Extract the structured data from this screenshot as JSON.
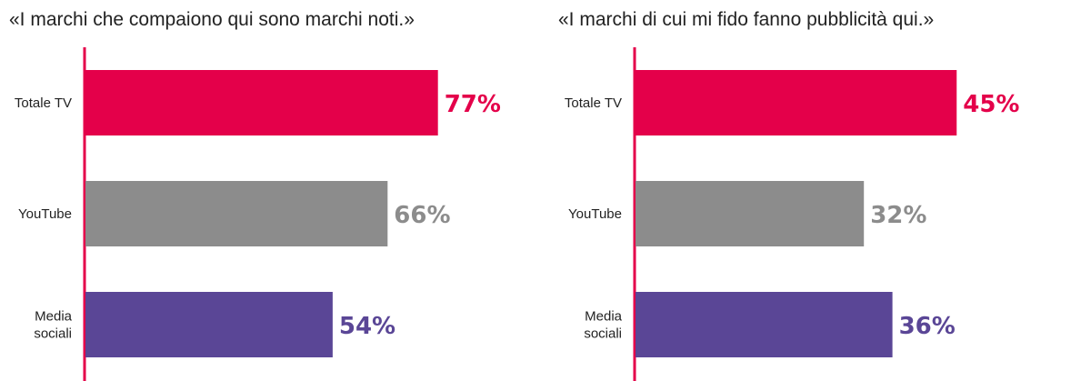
{
  "colors": {
    "axis": "#e4004a",
    "series": [
      "#e4004a",
      "#8c8c8c",
      "#5a4696"
    ]
  },
  "chart_data": [
    {
      "type": "bar",
      "orientation": "horizontal",
      "title": "«I marchi che compaiono qui sono marchi noti.»",
      "categories": [
        [
          "Totale TV"
        ],
        [
          "YouTube"
        ],
        [
          "Media",
          "sociali"
        ]
      ],
      "values": [
        77,
        66,
        54
      ],
      "value_labels": [
        "77%",
        "66%",
        "54%"
      ],
      "unit": "%",
      "xlim": [
        0,
        100
      ],
      "grid": false
    },
    {
      "type": "bar",
      "orientation": "horizontal",
      "title": "«I marchi di cui mi fido fanno pubblicità qui.»",
      "categories": [
        [
          "Totale TV"
        ],
        [
          "YouTube"
        ],
        [
          "Media",
          "sociali"
        ]
      ],
      "values": [
        45,
        32,
        36
      ],
      "value_labels": [
        "45%",
        "32%",
        "36%"
      ],
      "unit": "%",
      "xlim": [
        0,
        100
      ],
      "grid": false
    }
  ]
}
